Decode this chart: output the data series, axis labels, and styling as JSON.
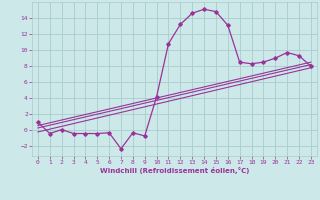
{
  "xlabel": "Windchill (Refroidissement éolien,°C)",
  "bg_color": "#cce8e8",
  "grid_color": "#aacccc",
  "line_color": "#993399",
  "xlim": [
    -0.5,
    23.5
  ],
  "ylim": [
    -3.2,
    16.0
  ],
  "xticks": [
    0,
    1,
    2,
    3,
    4,
    5,
    6,
    7,
    8,
    9,
    10,
    11,
    12,
    13,
    14,
    15,
    16,
    17,
    18,
    19,
    20,
    21,
    22,
    23
  ],
  "yticks": [
    -2,
    0,
    2,
    4,
    6,
    8,
    10,
    12,
    14
  ],
  "curve1_x": [
    0,
    1,
    2,
    3,
    4,
    5,
    6,
    7,
    8,
    9,
    10,
    11,
    12,
    13,
    14,
    15,
    16,
    17,
    18,
    19,
    20,
    21,
    22,
    23
  ],
  "curve1_y": [
    1.0,
    -0.4,
    0.1,
    -0.4,
    -0.4,
    -0.4,
    -0.3,
    -2.3,
    -0.3,
    -0.7,
    4.2,
    10.8,
    13.2,
    14.6,
    15.1,
    14.8,
    13.1,
    8.5,
    8.3,
    8.5,
    9.0,
    9.7,
    9.3,
    8.0
  ],
  "line1_x": [
    0,
    23
  ],
  "line1_y": [
    -0.2,
    7.8
  ],
  "line2_x": [
    0,
    23
  ],
  "line2_y": [
    0.3,
    8.2
  ],
  "line3_x": [
    0,
    23
  ],
  "line3_y": [
    0.6,
    8.5
  ]
}
